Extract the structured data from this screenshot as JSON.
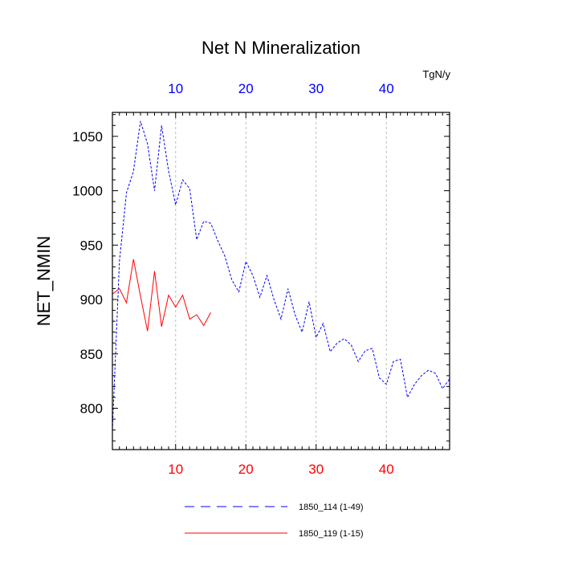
{
  "chart_data": {
    "type": "line",
    "title": "Net N Mineralization",
    "ylabel": "NET_NMIN",
    "units": "TgN/y",
    "xlim": [
      1,
      49
    ],
    "ylim": [
      762,
      1072
    ],
    "x_ticks": [
      10,
      20,
      30,
      40
    ],
    "x_tick_labels": [
      "10",
      "20",
      "30",
      "40"
    ],
    "y_ticks": [
      800,
      850,
      900,
      950,
      1000,
      1050
    ],
    "y_tick_labels": [
      "800",
      "850",
      "900",
      "950",
      "1000",
      "1050"
    ],
    "grid": "vertical dashed at x ticks",
    "colors": {
      "bottom_ticks": "#ff0000",
      "top_ticks": "#0000ff",
      "axis": "#000000",
      "grid": "#bdbdbd"
    },
    "series": [
      {
        "name": "1850_114 (1-49)",
        "color": "#0000ff",
        "style": "dashed",
        "x": [
          1,
          2,
          3,
          4,
          5,
          6,
          7,
          8,
          9,
          10,
          11,
          12,
          13,
          14,
          15,
          16,
          17,
          18,
          19,
          20,
          21,
          22,
          23,
          24,
          25,
          26,
          27,
          28,
          29,
          30,
          31,
          32,
          33,
          34,
          35,
          36,
          37,
          38,
          39,
          40,
          41,
          42,
          43,
          44,
          45,
          46,
          47,
          48,
          49
        ],
        "values": [
          780,
          935,
          998,
          1018,
          1064,
          1043,
          1000,
          1060,
          1018,
          987,
          1010,
          1002,
          955,
          972,
          970,
          954,
          940,
          918,
          907,
          935,
          922,
          902,
          922,
          900,
          882,
          910,
          886,
          870,
          898,
          865,
          878,
          852,
          860,
          864,
          858,
          843,
          853,
          855,
          828,
          822,
          843,
          845,
          810,
          822,
          830,
          835,
          832,
          818,
          827
        ]
      },
      {
        "name": "1850_119 (1-15)",
        "color": "#ff0000",
        "style": "solid",
        "x": [
          1,
          2,
          3,
          4,
          5,
          6,
          7,
          8,
          9,
          10,
          11,
          12,
          13,
          14,
          15
        ],
        "values": [
          905,
          910,
          897,
          937,
          903,
          871,
          926,
          875,
          904,
          893,
          904,
          882,
          886,
          876,
          888
        ]
      }
    ]
  }
}
